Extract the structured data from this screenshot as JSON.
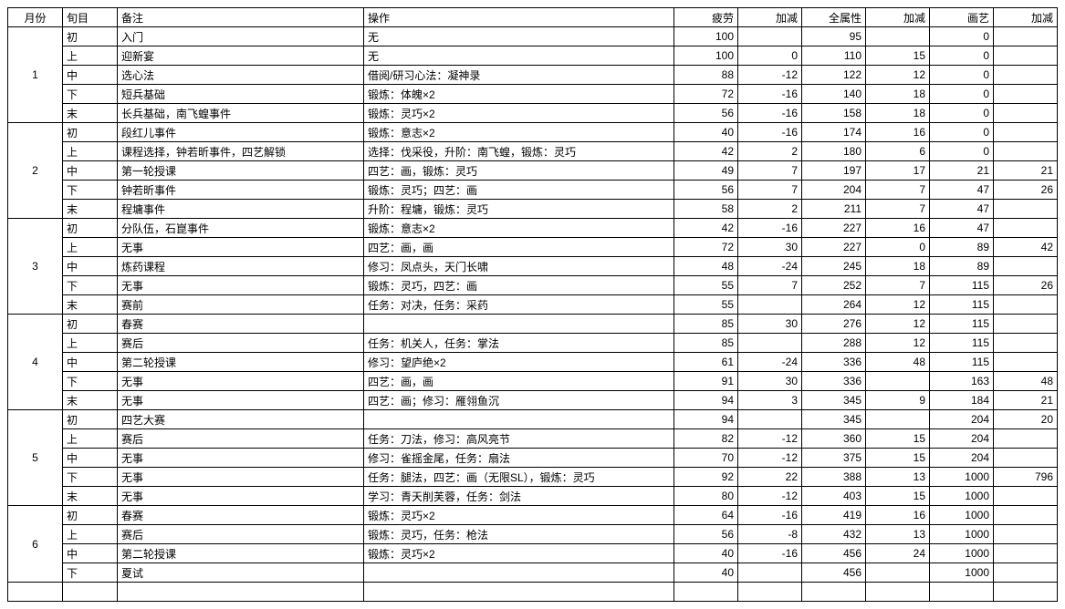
{
  "headers": {
    "month": "月份",
    "xun": "旬目",
    "note": "备注",
    "op": "操作",
    "fatigue": "疲劳",
    "delta_f": "加减",
    "attr": "全属性",
    "delta_a": "加减",
    "paint": "画艺",
    "delta_p": "加减"
  },
  "groups": [
    {
      "month": "1",
      "rows": [
        {
          "xun": "初",
          "note": "入门",
          "op": "无",
          "f": "100",
          "df": "",
          "a": "95",
          "da": "",
          "p": "0",
          "dp": ""
        },
        {
          "xun": "上",
          "note": "迎新宴",
          "op": "无",
          "f": "100",
          "df": "0",
          "a": "110",
          "da": "15",
          "p": "0",
          "dp": ""
        },
        {
          "xun": "中",
          "note": "选心法",
          "op": "借阅/研习心法：凝神录",
          "f": "88",
          "df": "-12",
          "a": "122",
          "da": "12",
          "p": "0",
          "dp": ""
        },
        {
          "xun": "下",
          "note": "短兵基础",
          "op": "锻炼：体魄×2",
          "f": "72",
          "df": "-16",
          "a": "140",
          "da": "18",
          "p": "0",
          "dp": ""
        },
        {
          "xun": "末",
          "note": "长兵基础，南飞蝗事件",
          "op": "锻炼：灵巧×2",
          "f": "56",
          "df": "-16",
          "a": "158",
          "da": "18",
          "p": "0",
          "dp": ""
        }
      ]
    },
    {
      "month": "2",
      "rows": [
        {
          "xun": "初",
          "note": "段红儿事件",
          "op": "锻炼：意志×2",
          "f": "40",
          "df": "-16",
          "a": "174",
          "da": "16",
          "p": "0",
          "dp": ""
        },
        {
          "xun": "上",
          "note": "课程选择，钟若昕事件，四艺解锁",
          "op": "选择：伐采役，升阶：南飞蝗，锻炼：灵巧",
          "f": "42",
          "df": "2",
          "a": "180",
          "da": "6",
          "p": "0",
          "dp": ""
        },
        {
          "xun": "中",
          "note": "第一轮授课",
          "op": "四艺：画，锻炼：灵巧",
          "f": "49",
          "df": "7",
          "a": "197",
          "da": "17",
          "p": "21",
          "dp": "21"
        },
        {
          "xun": "下",
          "note": "钟若昕事件",
          "op": "锻炼：灵巧；四艺：画",
          "f": "56",
          "df": "7",
          "a": "204",
          "da": "7",
          "p": "47",
          "dp": "26"
        },
        {
          "xun": "末",
          "note": "程墉事件",
          "op": "升阶：程墉，锻炼：灵巧",
          "f": "58",
          "df": "2",
          "a": "211",
          "da": "7",
          "p": "47",
          "dp": ""
        }
      ]
    },
    {
      "month": "3",
      "rows": [
        {
          "xun": "初",
          "note": "分队伍，石崑事件",
          "op": "锻炼：意志×2",
          "f": "42",
          "df": "-16",
          "a": "227",
          "da": "16",
          "p": "47",
          "dp": ""
        },
        {
          "xun": "上",
          "note": "无事",
          "op": "四艺：画，画",
          "f": "72",
          "df": "30",
          "a": "227",
          "da": "0",
          "p": "89",
          "dp": "42"
        },
        {
          "xun": "中",
          "note": "炼药课程",
          "op": "修习：凤点头，天门长啸",
          "f": "48",
          "df": "-24",
          "a": "245",
          "da": "18",
          "p": "89",
          "dp": ""
        },
        {
          "xun": "下",
          "note": "无事",
          "op": "锻炼：灵巧，四艺：画",
          "f": "55",
          "df": "7",
          "a": "252",
          "da": "7",
          "p": "115",
          "dp": "26"
        },
        {
          "xun": "末",
          "note": "赛前",
          "op": "任务：对决，任务：采药",
          "f": "55",
          "df": "",
          "a": "264",
          "da": "12",
          "p": "115",
          "dp": ""
        }
      ]
    },
    {
      "month": "4",
      "rows": [
        {
          "xun": "初",
          "note": "春赛",
          "op": "",
          "f": "85",
          "df": "30",
          "a": "276",
          "da": "12",
          "p": "115",
          "dp": ""
        },
        {
          "xun": "上",
          "note": "赛后",
          "op": "任务：机关人，任务：掌法",
          "f": "85",
          "df": "",
          "a": "288",
          "da": "12",
          "p": "115",
          "dp": ""
        },
        {
          "xun": "中",
          "note": "第二轮授课",
          "op": "修习：望庐绝×2",
          "f": "61",
          "df": "-24",
          "a": "336",
          "da": "48",
          "p": "115",
          "dp": ""
        },
        {
          "xun": "下",
          "note": "无事",
          "op": "四艺：画，画",
          "f": "91",
          "df": "30",
          "a": "336",
          "da": "",
          "p": "163",
          "dp": "48"
        },
        {
          "xun": "末",
          "note": "无事",
          "op": "四艺：画；修习：雁翎鱼沉",
          "f": "94",
          "df": "3",
          "a": "345",
          "da": "9",
          "p": "184",
          "dp": "21"
        }
      ]
    },
    {
      "month": "5",
      "rows": [
        {
          "xun": "初",
          "note": "四艺大赛",
          "op": "",
          "f": "94",
          "df": "",
          "a": "345",
          "da": "",
          "p": "204",
          "dp": "20"
        },
        {
          "xun": "上",
          "note": "赛后",
          "op": "任务：刀法，修习：高风亮节",
          "f": "82",
          "df": "-12",
          "a": "360",
          "da": "15",
          "p": "204",
          "dp": ""
        },
        {
          "xun": "中",
          "note": "无事",
          "op": "修习：雀摇金尾，任务：扇法",
          "f": "70",
          "df": "-12",
          "a": "375",
          "da": "15",
          "p": "204",
          "dp": ""
        },
        {
          "xun": "下",
          "note": "无事",
          "op": "任务：腿法，四艺：画（无限SL），锻炼：灵巧",
          "f": "92",
          "df": "22",
          "a": "388",
          "da": "13",
          "p": "1000",
          "dp": "796"
        },
        {
          "xun": "末",
          "note": "无事",
          "op": "学习：青天削芙蓉，任务：剑法",
          "f": "80",
          "df": "-12",
          "a": "403",
          "da": "15",
          "p": "1000",
          "dp": ""
        }
      ]
    },
    {
      "month": "6",
      "rows": [
        {
          "xun": "初",
          "note": "春赛",
          "op": "锻炼：灵巧×2",
          "f": "64",
          "df": "-16",
          "a": "419",
          "da": "16",
          "p": "1000",
          "dp": ""
        },
        {
          "xun": "上",
          "note": "赛后",
          "op": "锻炼：灵巧，任务：枪法",
          "f": "56",
          "df": "-8",
          "a": "432",
          "da": "13",
          "p": "1000",
          "dp": ""
        },
        {
          "xun": "中",
          "note": "第二轮授课",
          "op": "锻炼：灵巧×2",
          "f": "40",
          "df": "-16",
          "a": "456",
          "da": "24",
          "p": "1000",
          "dp": ""
        },
        {
          "xun": "下",
          "note": "夏试",
          "op": "",
          "f": "40",
          "df": "",
          "a": "456",
          "da": "",
          "p": "1000",
          "dp": ""
        }
      ]
    }
  ]
}
